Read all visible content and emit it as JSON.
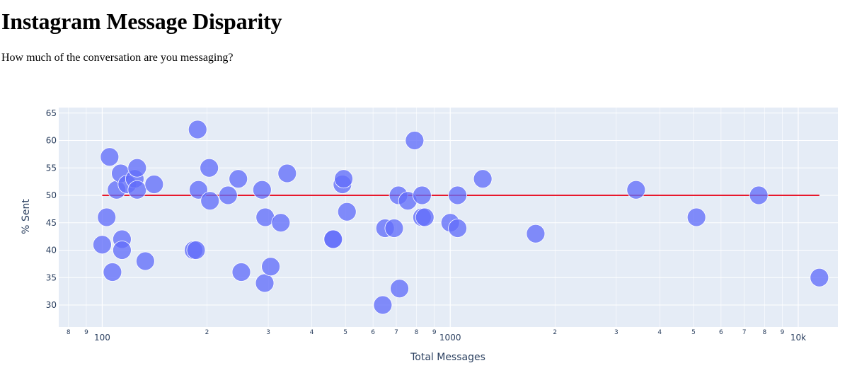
{
  "page": {
    "title": "Instagram Message Disparity",
    "subtitle": "How much of the conversation are you messaging?"
  },
  "colors": {
    "plot_background": "#e5ecf6",
    "marker": "#636efa",
    "reference_line": "#e8182c",
    "axis_text": "#2a3f5f"
  },
  "chart_data": {
    "type": "scatter",
    "xlabel": "Total Messages",
    "ylabel": "% Sent",
    "xscale": "log",
    "xlim": [
      75,
      13000
    ],
    "ylim": [
      26,
      66
    ],
    "grid": true,
    "legend": "none",
    "x_major_ticks": [
      {
        "value": 100,
        "label": "100"
      },
      {
        "value": 1000,
        "label": "1000"
      },
      {
        "value": 10000,
        "label": "10k"
      }
    ],
    "x_minor_ticks": [
      {
        "value": 80,
        "label": "8"
      },
      {
        "value": 90,
        "label": "9"
      },
      {
        "value": 200,
        "label": "2"
      },
      {
        "value": 300,
        "label": "3"
      },
      {
        "value": 400,
        "label": "4"
      },
      {
        "value": 500,
        "label": "5"
      },
      {
        "value": 600,
        "label": "6"
      },
      {
        "value": 700,
        "label": "7"
      },
      {
        "value": 800,
        "label": "8"
      },
      {
        "value": 900,
        "label": "9"
      },
      {
        "value": 2000,
        "label": "2"
      },
      {
        "value": 3000,
        "label": "3"
      },
      {
        "value": 4000,
        "label": "4"
      },
      {
        "value": 5000,
        "label": "5"
      },
      {
        "value": 6000,
        "label": "6"
      },
      {
        "value": 7000,
        "label": "7"
      },
      {
        "value": 8000,
        "label": "8"
      },
      {
        "value": 9000,
        "label": "9"
      }
    ],
    "y_ticks": [
      30,
      35,
      40,
      45,
      50,
      55,
      60,
      65
    ],
    "reference_line": {
      "x": [
        100,
        11500
      ],
      "y": [
        50,
        50
      ]
    },
    "points": [
      {
        "x": 100,
        "y": 41
      },
      {
        "x": 103,
        "y": 46
      },
      {
        "x": 105,
        "y": 57
      },
      {
        "x": 107,
        "y": 36
      },
      {
        "x": 110,
        "y": 51
      },
      {
        "x": 113,
        "y": 54
      },
      {
        "x": 114,
        "y": 42
      },
      {
        "x": 114,
        "y": 40
      },
      {
        "x": 118,
        "y": 52
      },
      {
        "x": 124,
        "y": 53
      },
      {
        "x": 126,
        "y": 55
      },
      {
        "x": 126,
        "y": 51
      },
      {
        "x": 133,
        "y": 38
      },
      {
        "x": 141,
        "y": 52
      },
      {
        "x": 183,
        "y": 40
      },
      {
        "x": 186,
        "y": 40
      },
      {
        "x": 188,
        "y": 62
      },
      {
        "x": 189,
        "y": 51
      },
      {
        "x": 203,
        "y": 55
      },
      {
        "x": 204,
        "y": 49
      },
      {
        "x": 230,
        "y": 50
      },
      {
        "x": 246,
        "y": 53
      },
      {
        "x": 251,
        "y": 36
      },
      {
        "x": 288,
        "y": 51
      },
      {
        "x": 293,
        "y": 34
      },
      {
        "x": 294,
        "y": 46
      },
      {
        "x": 305,
        "y": 37
      },
      {
        "x": 326,
        "y": 45
      },
      {
        "x": 340,
        "y": 54
      },
      {
        "x": 460,
        "y": 42
      },
      {
        "x": 461,
        "y": 42
      },
      {
        "x": 490,
        "y": 52
      },
      {
        "x": 494,
        "y": 53
      },
      {
        "x": 505,
        "y": 47
      },
      {
        "x": 640,
        "y": 30
      },
      {
        "x": 650,
        "y": 44
      },
      {
        "x": 690,
        "y": 44
      },
      {
        "x": 710,
        "y": 50
      },
      {
        "x": 715,
        "y": 33
      },
      {
        "x": 755,
        "y": 49
      },
      {
        "x": 790,
        "y": 60
      },
      {
        "x": 830,
        "y": 50
      },
      {
        "x": 830,
        "y": 46
      },
      {
        "x": 845,
        "y": 46
      },
      {
        "x": 1000,
        "y": 45
      },
      {
        "x": 1050,
        "y": 50
      },
      {
        "x": 1050,
        "y": 44
      },
      {
        "x": 1240,
        "y": 53
      },
      {
        "x": 1760,
        "y": 43
      },
      {
        "x": 3420,
        "y": 51
      },
      {
        "x": 5100,
        "y": 46
      },
      {
        "x": 7700,
        "y": 50
      },
      {
        "x": 11500,
        "y": 35
      }
    ]
  }
}
